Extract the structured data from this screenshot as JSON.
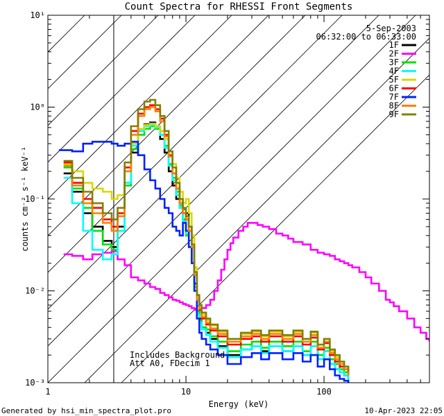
{
  "chart_data": {
    "type": "line",
    "title": "Count Spectra for RHESSI Front Segments",
    "xlabel": "Energy (keV)",
    "ylabel": "counts cm⁻² s⁻¹ keV⁻¹",
    "xscale": "log",
    "yscale": "log",
    "xlim": [
      1,
      580
    ],
    "ylim": [
      0.001,
      10
    ],
    "x_ticks": [
      {
        "value": 1,
        "label": "1"
      },
      {
        "value": 10,
        "label": "10"
      },
      {
        "value": 100,
        "label": "100"
      }
    ],
    "y_ticks": [
      {
        "value": 10,
        "label": "10¹"
      },
      {
        "value": 1,
        "label": "10⁰"
      },
      {
        "value": 0.1,
        "label": "10⁻¹"
      },
      {
        "value": 0.01,
        "label": "10⁻²"
      },
      {
        "value": 0.001,
        "label": "10⁻³"
      }
    ],
    "date": "5-Sep-2003",
    "time_range": "06:32:00 to 06:33:00",
    "annotations": [
      "Includes Background",
      "Att A0, FDecim 1"
    ],
    "footer_left": "Generated by hsi_min_spectra_plot.pro",
    "footer_right": "10-Apr-2023 22:05",
    "hatched_region_x": [
      1,
      3
    ],
    "series": [
      {
        "name": "1F",
        "color": "#000000",
        "x": [
          1.3,
          1.5,
          1.8,
          2.1,
          2.5,
          2.9,
          3.2,
          3.6,
          4.0,
          4.5,
          5.0,
          5.5,
          6.0,
          6.5,
          7.0,
          7.5,
          8.0,
          8.5,
          9.0,
          9.5,
          10.0,
          10.5,
          11.0,
          11.5,
          12.0,
          12.5,
          13.0,
          14.0,
          15.0,
          17.0,
          20.0,
          25.0,
          30.0,
          35.0,
          40.0,
          50.0,
          60.0,
          70.0,
          80.0,
          90.0,
          100.0,
          110.0,
          120.0,
          130.0,
          140.0,
          150.0
        ],
        "y": [
          0.19,
          0.12,
          0.07,
          0.05,
          0.035,
          0.03,
          0.05,
          0.15,
          0.32,
          0.55,
          0.65,
          0.68,
          0.6,
          0.45,
          0.32,
          0.2,
          0.14,
          0.1,
          0.08,
          0.06,
          0.07,
          0.05,
          0.03,
          0.012,
          0.006,
          0.005,
          0.004,
          0.0035,
          0.003,
          0.0025,
          0.002,
          0.0023,
          0.0025,
          0.0022,
          0.0025,
          0.0022,
          0.0025,
          0.002,
          0.0025,
          0.0018,
          0.0022,
          0.0016,
          0.0014,
          0.0013,
          0.0012,
          0.001
        ]
      },
      {
        "name": "2F",
        "color": "#ff00ff",
        "x": [
          1.3,
          1.5,
          1.8,
          2.1,
          2.5,
          2.9,
          3.2,
          3.6,
          4.0,
          4.5,
          5.0,
          5.5,
          6.0,
          6.5,
          7.0,
          7.5,
          8.0,
          8.5,
          9.0,
          9.5,
          10.0,
          10.5,
          11.0,
          11.5,
          12.0,
          12.5,
          13.0,
          14.0,
          15.0,
          16.0,
          17.0,
          18.0,
          19.0,
          20.0,
          21.0,
          22.0,
          24.0,
          26.0,
          28.0,
          30.0,
          33.0,
          36.0,
          40.0,
          45.0,
          50.0,
          55.0,
          60.0,
          70.0,
          80.0,
          90.0,
          100.0,
          110.0,
          120.0,
          130.0,
          140.0,
          150.0,
          160.0,
          180.0,
          200.0,
          220.0,
          250.0,
          280.0,
          300.0,
          320.0,
          350.0,
          400.0,
          450.0,
          500.0,
          550.0,
          580.0
        ],
        "y": [
          0.025,
          0.024,
          0.022,
          0.025,
          0.026,
          0.027,
          0.022,
          0.019,
          0.014,
          0.013,
          0.012,
          0.011,
          0.0105,
          0.0095,
          0.009,
          0.0085,
          0.008,
          0.0078,
          0.0075,
          0.0072,
          0.007,
          0.0068,
          0.0065,
          0.0062,
          0.006,
          0.0062,
          0.0065,
          0.007,
          0.008,
          0.01,
          0.013,
          0.017,
          0.022,
          0.028,
          0.033,
          0.038,
          0.045,
          0.05,
          0.055,
          0.055,
          0.052,
          0.05,
          0.047,
          0.042,
          0.04,
          0.037,
          0.034,
          0.032,
          0.028,
          0.026,
          0.025,
          0.024,
          0.022,
          0.021,
          0.02,
          0.019,
          0.018,
          0.016,
          0.014,
          0.012,
          0.01,
          0.008,
          0.0075,
          0.0068,
          0.006,
          0.005,
          0.004,
          0.0035,
          0.003,
          0.0028
        ]
      },
      {
        "name": "3F",
        "color": "#00e000",
        "x": [
          1.3,
          1.5,
          1.8,
          2.1,
          2.5,
          2.9,
          3.2,
          3.6,
          4.0,
          4.5,
          5.0,
          5.5,
          6.0,
          6.5,
          7.0,
          7.5,
          8.0,
          8.5,
          9.0,
          9.5,
          10.0,
          10.5,
          11.0,
          11.5,
          12.0,
          12.5,
          13.0,
          14.0,
          15.0,
          17.0,
          20.0,
          25.0,
          30.0,
          35.0,
          40.0,
          50.0,
          60.0,
          70.0,
          80.0,
          90.0,
          100.0,
          110.0,
          120.0,
          130.0,
          140.0,
          150.0
        ],
        "y": [
          0.22,
          0.13,
          0.08,
          0.045,
          0.032,
          0.028,
          0.045,
          0.14,
          0.35,
          0.5,
          0.58,
          0.62,
          0.58,
          0.5,
          0.38,
          0.24,
          0.17,
          0.12,
          0.085,
          0.06,
          0.04,
          0.03,
          0.02,
          0.011,
          0.006,
          0.0048,
          0.004,
          0.0038,
          0.0032,
          0.0028,
          0.0022,
          0.0026,
          0.0028,
          0.0024,
          0.0028,
          0.0025,
          0.0028,
          0.0022,
          0.0028,
          0.002,
          0.0024,
          0.0018,
          0.0016,
          0.0014,
          0.0013,
          0.0011
        ]
      },
      {
        "name": "4F",
        "color": "#00ffff",
        "x": [
          1.3,
          1.5,
          1.8,
          2.1,
          2.5,
          2.9,
          3.2,
          3.6,
          4.0,
          4.5,
          5.0,
          5.5,
          6.0,
          6.5,
          7.0,
          7.5,
          8.0,
          8.5,
          9.0,
          9.5,
          10.0,
          10.5,
          11.0,
          11.5,
          12.0,
          12.5,
          13.0,
          14.0,
          15.0,
          17.0,
          20.0,
          25.0,
          30.0,
          35.0,
          40.0,
          50.0,
          60.0,
          70.0,
          80.0,
          90.0,
          100.0,
          110.0,
          120.0,
          130.0,
          140.0,
          150.0
        ],
        "y": [
          0.17,
          0.09,
          0.045,
          0.028,
          0.022,
          0.025,
          0.045,
          0.15,
          0.38,
          0.55,
          0.62,
          0.64,
          0.6,
          0.5,
          0.36,
          0.23,
          0.16,
          0.11,
          0.08,
          0.057,
          0.042,
          0.03,
          0.02,
          0.01,
          0.0055,
          0.0045,
          0.0038,
          0.0033,
          0.0028,
          0.0024,
          0.0019,
          0.0023,
          0.0025,
          0.0021,
          0.0025,
          0.0022,
          0.0025,
          0.002,
          0.0025,
          0.0018,
          0.0022,
          0.0016,
          0.0014,
          0.0013,
          0.0012,
          0.001
        ]
      },
      {
        "name": "5F",
        "color": "#d8d800",
        "x": [
          1.3,
          1.5,
          1.8,
          2.1,
          2.5,
          2.9,
          3.2,
          3.6,
          4.0,
          4.5,
          5.0,
          5.5,
          6.0,
          6.5,
          7.0,
          7.5,
          8.0,
          8.5,
          9.0,
          9.5,
          10.0,
          10.5,
          11.0,
          11.5,
          12.0,
          12.5,
          13.0,
          14.0,
          15.0,
          17.0,
          20.0,
          25.0,
          30.0,
          35.0,
          40.0,
          50.0,
          60.0,
          70.0,
          80.0,
          90.0,
          100.0,
          110.0,
          120.0,
          130.0,
          140.0,
          150.0
        ],
        "y": [
          0.24,
          0.2,
          0.15,
          0.13,
          0.12,
          0.1,
          0.11,
          0.2,
          0.4,
          0.58,
          0.64,
          0.66,
          0.62,
          0.55,
          0.45,
          0.33,
          0.24,
          0.17,
          0.12,
          0.09,
          0.1,
          0.07,
          0.04,
          0.018,
          0.009,
          0.007,
          0.0055,
          0.0048,
          0.0042,
          0.0036,
          0.003,
          0.0034,
          0.0036,
          0.0032,
          0.0036,
          0.0032,
          0.0036,
          0.003,
          0.0035,
          0.0026,
          0.003,
          0.0022,
          0.0019,
          0.0017,
          0.0015,
          0.0013
        ]
      },
      {
        "name": "6F",
        "color": "#ff0000",
        "x": [
          1.3,
          1.5,
          1.8,
          2.1,
          2.5,
          2.9,
          3.2,
          3.6,
          4.0,
          4.5,
          5.0,
          5.5,
          6.0,
          6.5,
          7.0,
          7.5,
          8.0,
          8.5,
          9.0,
          9.5,
          10.0,
          10.5,
          11.0,
          11.5,
          12.0,
          12.5,
          13.0,
          14.0,
          15.0,
          17.0,
          20.0,
          25.0,
          30.0,
          35.0,
          40.0,
          50.0,
          60.0,
          70.0,
          80.0,
          90.0,
          100.0,
          110.0,
          120.0,
          130.0,
          140.0,
          150.0
        ],
        "y": [
          0.25,
          0.15,
          0.1,
          0.08,
          0.06,
          0.05,
          0.07,
          0.22,
          0.55,
          0.85,
          1.0,
          1.05,
          0.95,
          0.75,
          0.5,
          0.3,
          0.19,
          0.13,
          0.09,
          0.07,
          0.06,
          0.045,
          0.03,
          0.015,
          0.008,
          0.0062,
          0.005,
          0.0043,
          0.0037,
          0.0032,
          0.0026,
          0.003,
          0.0032,
          0.0028,
          0.0032,
          0.0028,
          0.0032,
          0.0026,
          0.0031,
          0.0023,
          0.0027,
          0.002,
          0.0017,
          0.0015,
          0.0014,
          0.0012
        ]
      },
      {
        "name": "7F",
        "color": "#0020ff",
        "x": [
          1.2,
          1.5,
          1.8,
          2.1,
          2.5,
          2.9,
          3.2,
          3.6,
          4.0,
          4.5,
          5.0,
          5.5,
          6.0,
          6.5,
          7.0,
          7.5,
          8.0,
          8.5,
          9.0,
          9.5,
          10.0,
          10.5,
          11.0,
          11.5,
          12.0,
          12.5,
          13.0,
          14.0,
          15.0,
          17.0,
          20.0,
          25.0,
          30.0,
          35.0,
          40.0,
          50.0,
          60.0,
          70.0,
          80.0,
          90.0,
          100.0,
          110.0,
          120.0,
          130.0,
          140.0,
          150.0
        ],
        "y": [
          0.34,
          0.33,
          0.4,
          0.42,
          0.42,
          0.4,
          0.38,
          0.4,
          0.42,
          0.3,
          0.21,
          0.16,
          0.13,
          0.1,
          0.08,
          0.07,
          0.05,
          0.045,
          0.04,
          0.055,
          0.045,
          0.03,
          0.02,
          0.01,
          0.005,
          0.0035,
          0.003,
          0.0026,
          0.0023,
          0.002,
          0.0016,
          0.0019,
          0.0021,
          0.0018,
          0.0021,
          0.0018,
          0.0021,
          0.0017,
          0.002,
          0.0015,
          0.0018,
          0.0014,
          0.0012,
          0.0011,
          0.00105,
          0.001
        ]
      },
      {
        "name": "8F",
        "color": "#ff8000",
        "x": [
          1.3,
          1.5,
          1.8,
          2.1,
          2.5,
          2.9,
          3.2,
          3.6,
          4.0,
          4.5,
          5.0,
          5.5,
          6.0,
          6.5,
          7.0,
          7.5,
          8.0,
          8.5,
          9.0,
          9.5,
          10.0,
          10.5,
          11.0,
          11.5,
          12.0,
          12.5,
          13.0,
          14.0,
          15.0,
          17.0,
          20.0,
          25.0,
          30.0,
          35.0,
          40.0,
          50.0,
          60.0,
          70.0,
          80.0,
          90.0,
          100.0,
          110.0,
          120.0,
          130.0,
          140.0,
          150.0
        ],
        "y": [
          0.23,
          0.14,
          0.09,
          0.07,
          0.055,
          0.045,
          0.065,
          0.2,
          0.5,
          0.8,
          0.95,
          1.0,
          0.9,
          0.7,
          0.48,
          0.29,
          0.19,
          0.13,
          0.09,
          0.07,
          0.06,
          0.045,
          0.03,
          0.015,
          0.008,
          0.0064,
          0.0052,
          0.0045,
          0.0039,
          0.0034,
          0.0028,
          0.0032,
          0.0034,
          0.003,
          0.0034,
          0.003,
          0.0034,
          0.0028,
          0.0033,
          0.0024,
          0.0028,
          0.0021,
          0.0018,
          0.0016,
          0.0014,
          0.0012
        ]
      },
      {
        "name": "9F",
        "color": "#808000",
        "x": [
          1.3,
          1.5,
          1.8,
          2.1,
          2.5,
          2.9,
          3.2,
          3.6,
          4.0,
          4.5,
          5.0,
          5.5,
          6.0,
          6.5,
          7.0,
          7.5,
          8.0,
          8.5,
          9.0,
          9.5,
          10.0,
          10.5,
          11.0,
          11.5,
          12.0,
          12.5,
          13.0,
          14.0,
          15.0,
          17.0,
          20.0,
          25.0,
          30.0,
          35.0,
          40.0,
          50.0,
          60.0,
          70.0,
          80.0,
          90.0,
          100.0,
          110.0,
          120.0,
          130.0,
          140.0,
          150.0
        ],
        "y": [
          0.26,
          0.17,
          0.12,
          0.09,
          0.07,
          0.06,
          0.08,
          0.25,
          0.62,
          0.95,
          1.15,
          1.2,
          1.05,
          0.8,
          0.55,
          0.33,
          0.22,
          0.15,
          0.1,
          0.08,
          0.065,
          0.05,
          0.032,
          0.016,
          0.009,
          0.007,
          0.0058,
          0.005,
          0.0043,
          0.0037,
          0.003,
          0.0035,
          0.0037,
          0.0033,
          0.0037,
          0.0033,
          0.0037,
          0.003,
          0.0036,
          0.0026,
          0.003,
          0.0023,
          0.002,
          0.0017,
          0.0015,
          0.0013
        ]
      }
    ]
  }
}
